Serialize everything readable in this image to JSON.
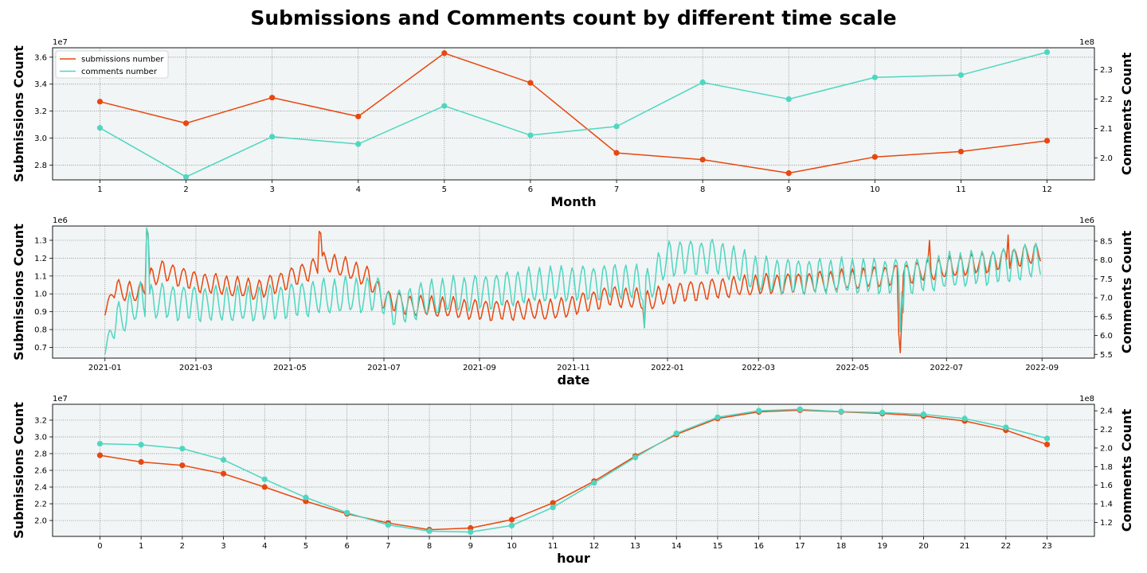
{
  "figure": {
    "suptitle": "Submissions and Comments count by different time scale"
  },
  "colors": {
    "submissions": "#e8470f",
    "comments": "#4fd6c1",
    "plot_background": "#f1f5f5",
    "grid": "#777777"
  },
  "legend": {
    "entries": [
      "submissions number",
      "comments number"
    ],
    "placement": "upper-left"
  },
  "chart_data": [
    {
      "type": "line",
      "id": "month",
      "markers": true,
      "xlabel": "Month",
      "ylabel_left": "Submissions Count",
      "ylabel_right": "Comments Count",
      "offset_left": "1e7",
      "offset_right": "1e8",
      "grid": true,
      "legend": "upper-left",
      "x": [
        1,
        2,
        3,
        4,
        5,
        6,
        7,
        8,
        9,
        10,
        11,
        12
      ],
      "xlim": [
        0.45,
        12.55
      ],
      "xticks": [
        1,
        2,
        3,
        4,
        5,
        6,
        7,
        8,
        9,
        10,
        11,
        12
      ],
      "xtick_labels": [
        "1",
        "2",
        "3",
        "4",
        "5",
        "6",
        "7",
        "8",
        "9",
        "10",
        "11",
        "12"
      ],
      "ylim_left": [
        2.69,
        3.67
      ],
      "yticks_left": [
        2.8,
        3.0,
        3.2,
        3.4,
        3.6
      ],
      "ytick_labels_left": [
        "2.8",
        "3.0",
        "3.2",
        "3.4",
        "3.6"
      ],
      "ylim_right": [
        1.925,
        2.375
      ],
      "yticks_right": [
        2.0,
        2.1,
        2.2,
        2.3
      ],
      "ytick_labels_right": [
        "2.0",
        "2.1",
        "2.2",
        "2.3"
      ],
      "series": [
        {
          "name": "submissions number",
          "axis": "left",
          "values": [
            3.27,
            3.11,
            3.3,
            3.16,
            3.63,
            3.41,
            2.89,
            2.84,
            2.74,
            2.86,
            2.9,
            2.98
          ]
        },
        {
          "name": "comments number",
          "axis": "right",
          "values": [
            2.102,
            1.935,
            2.072,
            2.047,
            2.177,
            2.077,
            2.107,
            2.257,
            2.2,
            2.274,
            2.282,
            2.36
          ]
        }
      ]
    },
    {
      "type": "line",
      "id": "date",
      "markers": false,
      "xlabel": "date",
      "ylabel_left": "Submissions Count",
      "ylabel_right": "Comments Count",
      "offset_left": "1e6",
      "offset_right": "1e6",
      "grid": true,
      "x_start": "2021-01-01",
      "x_end": "2022-08-31",
      "xlim": [
        "2020-11-28",
        "2022-10-05"
      ],
      "xticks": [
        "2021-01-01",
        "2021-03-01",
        "2021-05-01",
        "2021-07-01",
        "2021-09-01",
        "2021-11-01",
        "2022-01-01",
        "2022-03-01",
        "2022-05-01",
        "2022-07-01",
        "2022-09-01"
      ],
      "xtick_labels": [
        "2021-01",
        "2021-03",
        "2021-05",
        "2021-07",
        "2021-09",
        "2021-11",
        "2022-01",
        "2022-03",
        "2022-05",
        "2022-07",
        "2022-09"
      ],
      "ylim_left": [
        0.64,
        1.38
      ],
      "yticks_left": [
        0.7,
        0.8,
        0.9,
        1.0,
        1.1,
        1.2,
        1.3
      ],
      "ytick_labels_left": [
        "0.7",
        "0.8",
        "0.9",
        "1.0",
        "1.1",
        "1.2",
        "1.3"
      ],
      "ylim_right": [
        5.4,
        8.9
      ],
      "yticks_right": [
        5.5,
        6.0,
        6.5,
        7.0,
        7.5,
        8.0,
        8.5
      ],
      "ytick_labels_right": [
        "5.5",
        "6.0",
        "6.5",
        "7.0",
        "7.5",
        "8.0",
        "8.5"
      ],
      "series": [
        {
          "name": "submissions number",
          "axis": "left",
          "weekly_amplitude": 0.055,
          "base_points": [
            [
              "2021-01-01",
              0.88
            ],
            [
              "2021-01-06",
              1.03
            ],
            [
              "2021-01-24",
              1.0
            ],
            [
              "2021-01-29",
              1.08
            ],
            [
              "2021-02-08",
              1.13
            ],
            [
              "2021-03-01",
              1.07
            ],
            [
              "2021-04-10",
              1.02
            ],
            [
              "2021-05-10",
              1.12
            ],
            [
              "2021-05-25",
              1.18
            ],
            [
              "2021-06-20",
              1.1
            ],
            [
              "2021-06-30",
              0.98
            ],
            [
              "2021-07-15",
              0.94
            ],
            [
              "2021-09-01",
              0.91
            ],
            [
              "2021-10-20",
              0.91
            ],
            [
              "2021-11-25",
              0.99
            ],
            [
              "2021-12-20",
              0.96
            ],
            [
              "2022-01-01",
              1.0
            ],
            [
              "2022-01-20",
              1.02
            ],
            [
              "2022-03-01",
              1.05
            ],
            [
              "2022-05-01",
              1.08
            ],
            [
              "2022-06-01",
              1.11
            ],
            [
              "2022-07-15",
              1.16
            ],
            [
              "2022-08-31",
              1.23
            ]
          ],
          "events": [
            [
              "2021-01-28",
              1.35
            ],
            [
              "2021-01-29",
              1.33
            ],
            [
              "2021-05-20",
              1.35
            ],
            [
              "2021-05-21",
              1.34
            ],
            [
              "2021-12-17",
              0.81
            ],
            [
              "2022-05-31",
              0.78
            ],
            [
              "2022-06-01",
              0.67
            ],
            [
              "2022-06-02",
              0.86
            ],
            [
              "2022-06-20",
              1.3
            ],
            [
              "2022-08-10",
              1.33
            ]
          ]
        },
        {
          "name": "comments number",
          "axis": "right",
          "weekly_amplitude": 0.45,
          "base_points": [
            [
              "2021-01-01",
              5.5
            ],
            [
              "2021-01-06",
              6.3
            ],
            [
              "2021-01-24",
              6.9
            ],
            [
              "2021-02-10",
              6.9
            ],
            [
              "2021-04-01",
              6.8
            ],
            [
              "2021-05-15",
              7.0
            ],
            [
              "2021-06-30",
              7.1
            ],
            [
              "2021-07-05",
              6.7
            ],
            [
              "2021-08-01",
              7.0
            ],
            [
              "2021-10-01",
              7.3
            ],
            [
              "2021-12-01",
              7.45
            ],
            [
              "2021-12-20",
              7.3
            ],
            [
              "2022-01-01",
              8.05
            ],
            [
              "2022-02-01",
              8.1
            ],
            [
              "2022-03-01",
              7.6
            ],
            [
              "2022-05-01",
              7.55
            ],
            [
              "2022-06-15",
              7.6
            ],
            [
              "2022-08-31",
              8.0
            ]
          ],
          "events": [
            [
              "2021-01-28",
              8.85
            ],
            [
              "2021-01-29",
              8.7
            ],
            [
              "2021-12-17",
              6.2
            ],
            [
              "2022-06-01",
              6.1
            ],
            [
              "2022-06-03",
              6.6
            ]
          ]
        }
      ]
    },
    {
      "type": "line",
      "id": "hour",
      "markers": true,
      "xlabel": "hour",
      "ylabel_left": "Submissions Count",
      "ylabel_right": "Comments Count",
      "offset_left": "1e7",
      "offset_right": "1e8",
      "grid": true,
      "x": [
        0,
        1,
        2,
        3,
        4,
        5,
        6,
        7,
        8,
        9,
        10,
        11,
        12,
        13,
        14,
        15,
        16,
        17,
        18,
        19,
        20,
        21,
        22,
        23
      ],
      "xlim": [
        -1.15,
        24.15
      ],
      "xticks": [
        0,
        1,
        2,
        3,
        4,
        5,
        6,
        7,
        8,
        9,
        10,
        11,
        12,
        13,
        14,
        15,
        16,
        17,
        18,
        19,
        20,
        21,
        22,
        23
      ],
      "xtick_labels": [
        "0",
        "1",
        "2",
        "3",
        "4",
        "5",
        "6",
        "7",
        "8",
        "9",
        "10",
        "11",
        "12",
        "13",
        "14",
        "15",
        "16",
        "17",
        "18",
        "19",
        "20",
        "21",
        "22",
        "23"
      ],
      "ylim_left": [
        1.81,
        3.39
      ],
      "yticks_left": [
        2.0,
        2.2,
        2.4,
        2.6,
        2.8,
        3.0,
        3.2
      ],
      "ytick_labels_left": [
        "2.0",
        "2.2",
        "2.4",
        "2.6",
        "2.8",
        "3.0",
        "3.2"
      ],
      "ylim_right": [
        1.05,
        2.47
      ],
      "yticks_right": [
        1.2,
        1.4,
        1.6,
        1.8,
        2.0,
        2.2,
        2.4
      ],
      "ytick_labels_right": [
        "1.2",
        "1.4",
        "1.6",
        "1.8",
        "2.0",
        "2.2",
        "2.4"
      ],
      "series": [
        {
          "name": "submissions number",
          "axis": "left",
          "values": [
            2.78,
            2.7,
            2.66,
            2.56,
            2.4,
            2.23,
            2.08,
            1.97,
            1.89,
            1.91,
            2.01,
            2.21,
            2.47,
            2.77,
            3.03,
            3.22,
            3.3,
            3.32,
            3.3,
            3.28,
            3.25,
            3.19,
            3.08,
            2.91
          ]
        },
        {
          "name": "comments number",
          "axis": "right",
          "values": [
            2.046,
            2.035,
            1.994,
            1.873,
            1.664,
            1.468,
            1.305,
            1.173,
            1.107,
            1.097,
            1.167,
            1.362,
            1.625,
            1.899,
            2.158,
            2.331,
            2.401,
            2.416,
            2.392,
            2.381,
            2.362,
            2.316,
            2.222,
            2.103
          ]
        }
      ]
    }
  ]
}
